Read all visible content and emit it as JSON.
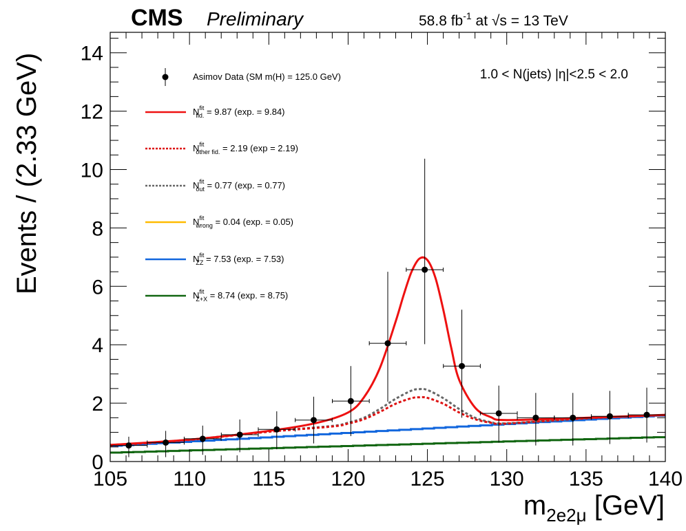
{
  "header": {
    "experiment": "CMS",
    "status": "Preliminary",
    "lumi_value": "58.8 fb",
    "lumi_exp": "-1",
    "lumi_at": " at ",
    "sqrt": "√s",
    "energy": " = 13 TeV"
  },
  "category_label": "1.0  < N(jets) |η|<2.5 < 2.0",
  "chart_data": {
    "type": "line",
    "xlabel_main": "m",
    "xlabel_sub": "2e2μ",
    "xlabel_unit": " [GeV]",
    "ylabel": "Events / (2.33 GeV)",
    "xlim": [
      105,
      140
    ],
    "ylim": [
      0,
      14.7
    ],
    "x_ticks": [
      105,
      110,
      115,
      120,
      125,
      130,
      135,
      140
    ],
    "y_ticks": [
      0,
      2,
      4,
      6,
      8,
      10,
      12,
      14
    ],
    "data_points": {
      "name": "Asimov Data (SM m(H) = 125.0 GeV)",
      "x": [
        106.17,
        108.5,
        110.83,
        113.17,
        115.5,
        117.83,
        120.17,
        122.5,
        124.83,
        127.17,
        129.5,
        131.83,
        134.17,
        136.5,
        138.83
      ],
      "y": [
        0.55,
        0.65,
        0.78,
        0.92,
        1.1,
        1.42,
        2.07,
        4.05,
        6.57,
        3.27,
        1.65,
        1.5,
        1.5,
        1.55,
        1.6
      ],
      "yerr_low": [
        0.4,
        0.5,
        0.55,
        0.6,
        0.68,
        0.8,
        1.2,
        2.0,
        2.55,
        1.77,
        1.0,
        0.95,
        0.95,
        0.95,
        0.95
      ],
      "yerr_high": [
        0.3,
        0.4,
        0.45,
        0.52,
        0.62,
        0.8,
        1.2,
        2.45,
        3.8,
        1.93,
        0.95,
        0.85,
        0.85,
        0.87,
        0.93
      ],
      "xerr": 1.165
    },
    "series": [
      {
        "name_main": "N",
        "name_sup": "fit",
        "name_sub": "fid.",
        "name_rest": " = 9.87 (exp. = 9.84)",
        "color": "#ee1111",
        "dash": "solid",
        "x": [
          105,
          110,
          115,
          118,
          120,
          121,
          122,
          123,
          123.5,
          124,
          124.5,
          125,
          125.5,
          126,
          126.5,
          127,
          128,
          129,
          130,
          135,
          140
        ],
        "y": [
          0.57,
          0.75,
          1.05,
          1.32,
          1.68,
          2.2,
          3.2,
          4.8,
          5.7,
          6.5,
          6.95,
          6.9,
          6.3,
          5.2,
          3.9,
          2.8,
          1.85,
          1.52,
          1.42,
          1.5,
          1.6
        ]
      },
      {
        "name_main": "N",
        "name_sup": "fit",
        "name_sub": "other fid.",
        "name_rest": " = 2.19 (exp = 2.19)",
        "color": "#dd1111",
        "dash": "dashed",
        "x": [
          105,
          110,
          115,
          119,
          120,
          121,
          122,
          123,
          124,
          124.5,
          125,
          126,
          127,
          128,
          129,
          130,
          135,
          140
        ],
        "y": [
          0.55,
          0.74,
          1.02,
          1.2,
          1.3,
          1.45,
          1.7,
          1.98,
          2.17,
          2.2,
          2.18,
          1.98,
          1.68,
          1.45,
          1.33,
          1.3,
          1.48,
          1.59
        ]
      },
      {
        "name_main": "N",
        "name_sup": "fit",
        "name_sub": "out",
        "name_rest": " = 0.77 (exp. = 0.77)",
        "color": "#666666",
        "dash": "dashed",
        "x": [
          105,
          110,
          115,
          119,
          120,
          121,
          122,
          123,
          124,
          124.5,
          125,
          126,
          127,
          128,
          129,
          130,
          135,
          140
        ],
        "y": [
          0.55,
          0.75,
          1.03,
          1.22,
          1.33,
          1.5,
          1.8,
          2.15,
          2.43,
          2.48,
          2.45,
          2.17,
          1.8,
          1.5,
          1.35,
          1.31,
          1.48,
          1.59
        ]
      },
      {
        "name_main": "N",
        "name_sup": "fit",
        "name_sub": "wrong",
        "name_rest": " = 0.04 (exp. = 0.05)",
        "color": "#ffbb00",
        "dash": "solid",
        "x": [],
        "y": []
      },
      {
        "name_main": "N",
        "name_sup": "fit",
        "name_sub": "ZZ",
        "name_rest": " = 7.53 (exp. = 7.53)",
        "color": "#1166dd",
        "dash": "step",
        "x": [
          105,
          140
        ],
        "y": [
          0.53,
          1.58
        ]
      },
      {
        "name_main": "N",
        "name_sup": "fit",
        "name_sub": "Z+X",
        "name_rest": " = 8.74 (exp. = 8.75)",
        "color": "#116611",
        "dash": "step",
        "x": [
          105,
          140
        ],
        "y": [
          0.3,
          0.84
        ]
      }
    ]
  }
}
